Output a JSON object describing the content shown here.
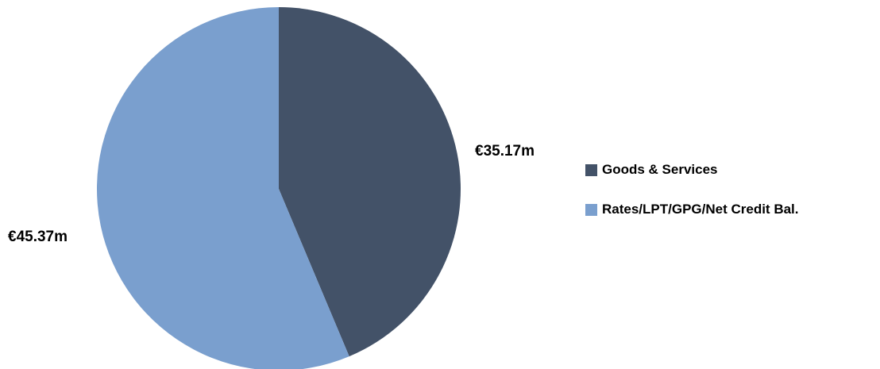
{
  "chart_data": {
    "type": "pie",
    "title": "",
    "categories": [
      "Goods & Services",
      "Rates/LPT/GPG/Net Credit Bal."
    ],
    "values": [
      35.17,
      45.37
    ],
    "data_labels": [
      "€35.17m",
      "€45.37m"
    ],
    "colors": [
      "#435268",
      "#7a9fce"
    ],
    "start_angle": "12 o'clock",
    "direction": "clockwise",
    "legend": "right"
  }
}
